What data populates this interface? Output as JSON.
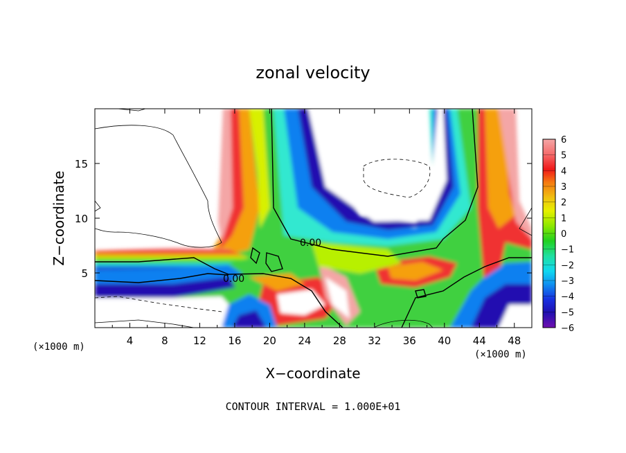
{
  "chart_data": {
    "type": "heatmap",
    "title": "zonal velocity",
    "xlabel": "X−coordinate",
    "ylabel": "Z−coordinate",
    "x_unit_left": "(×1000 m)",
    "x_unit_right": "(×1000 m)",
    "xlim": [
      0,
      50
    ],
    "ylim": [
      0,
      20
    ],
    "x_ticks": [
      4,
      8,
      12,
      16,
      20,
      24,
      28,
      32,
      36,
      40,
      44,
      48
    ],
    "y_ticks": [
      5,
      10,
      15
    ],
    "x_tick_labels": [
      "4",
      "8",
      "12",
      "16",
      "20",
      "24",
      "28",
      "32",
      "36",
      "40",
      "44",
      "48"
    ],
    "y_tick_labels": [
      "5",
      "10",
      "15"
    ],
    "colorbar": {
      "range": [
        -6,
        6
      ],
      "labels": [
        "6",
        "5",
        "4",
        "3",
        "2",
        "1",
        "0",
        "−1",
        "−2",
        "−3",
        "−4",
        "−5",
        "−6"
      ]
    },
    "contour_labels": [
      {
        "text": "0.00",
        "x": 24.5,
        "y": 7.8
      },
      {
        "text": "0.00",
        "x": 16.5,
        "y": 4.6
      }
    ],
    "footer": "CONTOUR INTERVAL = 1.000E+01"
  }
}
